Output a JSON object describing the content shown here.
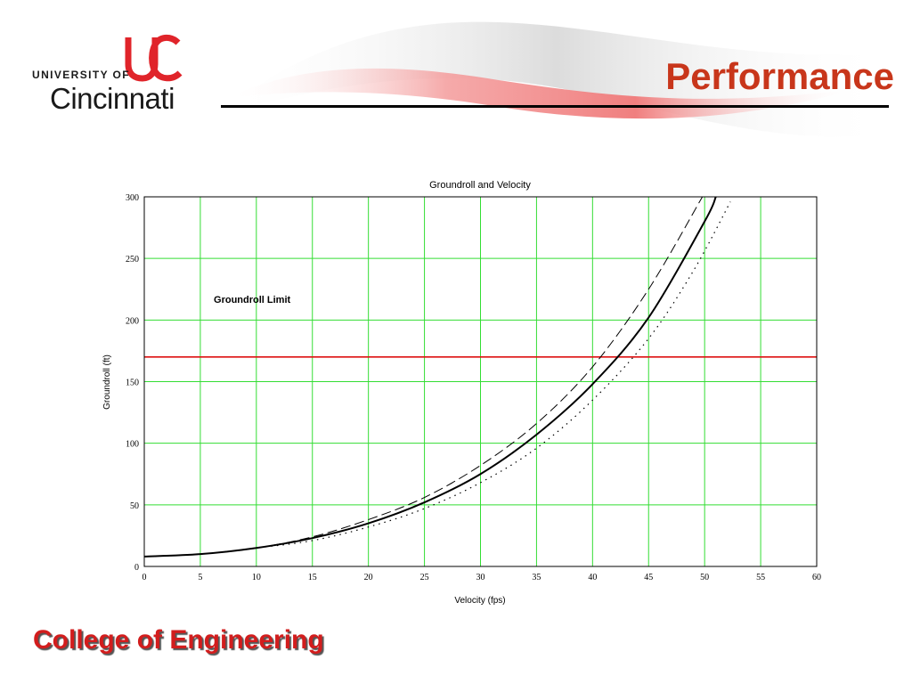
{
  "header": {
    "logo": {
      "line1": "UNIVERSITY OF",
      "line2": "Cincinnati",
      "mark": "UC"
    },
    "title": "Performance"
  },
  "footer": {
    "text": "College of Engineering"
  },
  "colors": {
    "title": "#c8361b",
    "footer": "#d21d1d",
    "grid": "#33dd33",
    "limit_line": "#dd1111",
    "curves": "#000000"
  },
  "chart_data": {
    "type": "line",
    "title": "Groundroll and Velocity",
    "xlabel": "Velocity (fps)",
    "ylabel": "Groundroll (ft)",
    "xlim": [
      0,
      60
    ],
    "ylim": [
      0,
      300
    ],
    "xticks": [
      0,
      5,
      10,
      15,
      20,
      25,
      30,
      35,
      40,
      45,
      50,
      55,
      60
    ],
    "yticks": [
      0,
      50,
      100,
      150,
      200,
      250,
      300
    ],
    "grid": true,
    "annotation": "Groundroll Limit",
    "reference_line": {
      "y": 170,
      "color": "#dd1111"
    },
    "series": [
      {
        "style": "solid",
        "x": [
          0,
          5,
          10,
          15,
          20,
          25,
          30,
          35,
          40,
          45,
          50,
          51
        ],
        "y": [
          8,
          10,
          15,
          23,
          35,
          52,
          75,
          107,
          148,
          202,
          280,
          300
        ]
      },
      {
        "style": "dashed",
        "x": [
          0,
          5,
          10,
          15,
          20,
          25,
          30,
          35,
          40,
          45,
          49.8
        ],
        "y": [
          8,
          10,
          15,
          24,
          38,
          56,
          82,
          116,
          162,
          225,
          300
        ]
      },
      {
        "style": "dotted",
        "x": [
          0,
          5,
          10,
          15,
          20,
          25,
          30,
          35,
          40,
          45,
          49,
          52.3
        ],
        "y": [
          8,
          10,
          15,
          21,
          32,
          47,
          68,
          96,
          135,
          185,
          240,
          296
        ]
      }
    ]
  }
}
